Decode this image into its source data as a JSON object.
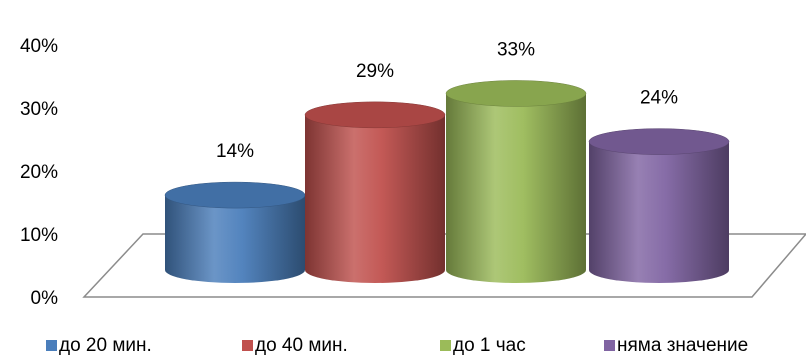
{
  "chart_data": {
    "type": "bar",
    "style": "3d-cylinder",
    "categories": [
      "до 20 мин.",
      "до 40 мин.",
      "до 1 час",
      "няма значение"
    ],
    "values": [
      14,
      29,
      33,
      24
    ],
    "data_labels": [
      "14%",
      "29%",
      "33%",
      "24%"
    ],
    "colors": [
      "#4a7ebb",
      "#c0504d",
      "#9bbb59",
      "#8064a2"
    ],
    "ylim": [
      0,
      40
    ],
    "yticks": [
      0,
      10,
      20,
      30,
      40
    ],
    "ytick_labels": [
      "0%",
      "10%",
      "20%",
      "30%",
      "40%"
    ],
    "legend_position": "bottom",
    "grid": false
  }
}
